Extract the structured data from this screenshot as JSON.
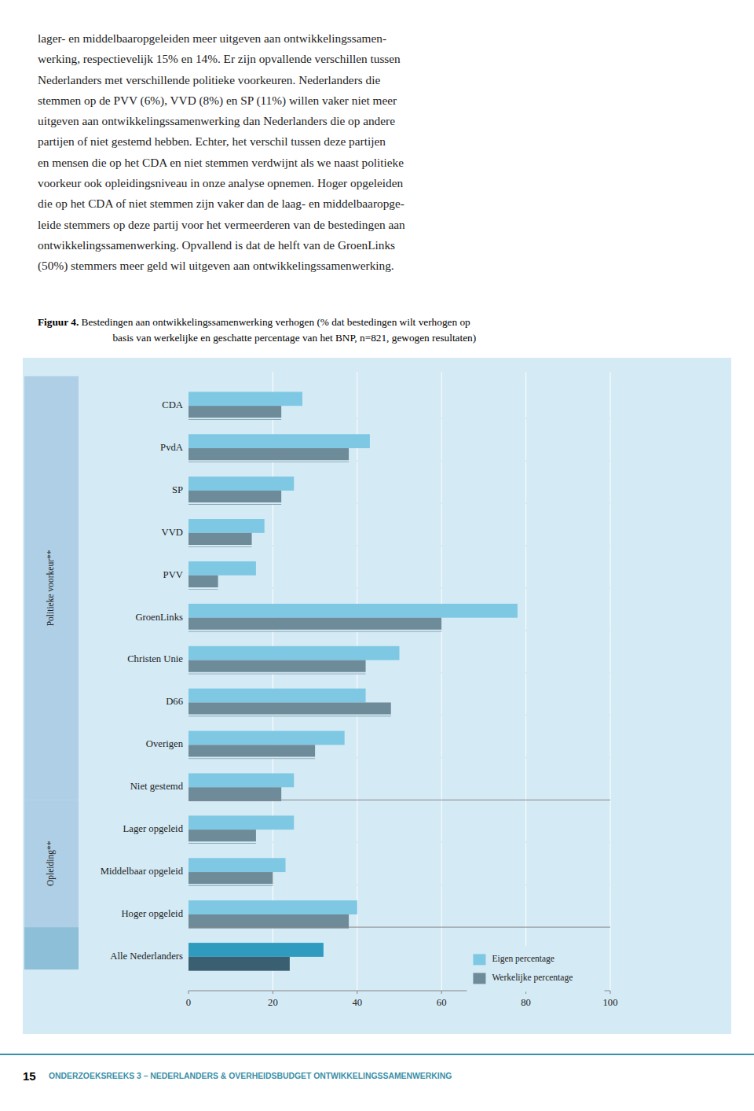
{
  "page": {
    "body_text": "lager- en middelbaaropgeleiden meer uitgeven aan ontwikkelingssamen-\nwerking, respectievelijk 15% en 14%. Er zijn opvallende verschillen tussen\nNederlanders met verschillende politieke voorkeuren. Nederlanders die\nstemmen op de PVV (6%), VVD (8%) en SP (11%) willen vaker niet meer\nuitgeven aan ontwikkelingssamenwerking dan Nederlanders die op andere\npartijen of niet gestemd hebben. Echter, het verschil tussen deze partijen\nen mensen die op het CDA en niet stemmen verdwijnt als we naast politieke\nvoorkeur ook opleidingsniveau in onze analyse opnemen. Hoger opgeleiden\ndie op het CDA of niet stemmen zijn vaker dan de laag- en middelbaaropge-\nleide stemmers op deze partij voor het vermeerderen van de bestedingen aan\nontwikkelingssamenwerking. Opvallend is dat de helft van de GroenLinks\n(50%) stemmers meer geld wil uitgeven aan ontwikkelingssamenwerking.",
    "figure_label": "Figuur 4.",
    "figure_text": " Bestedingen aan ontwikkelingssamenwerking verhogen (% dat bestedingen wilt verhogen op\n             basis van werkelijke en geschatte percentage van het BNP, n=821, gewogen resultaten)",
    "footer_number": "15",
    "footer_text": "ONDERZOEKSREEKS 3 – NEDERLANDERS & OVERHEIDSBUDGET ONTWIKKELINGSSAMENWERKING"
  },
  "chart_data": {
    "type": "bar",
    "orientation": "horizontal",
    "categories": [
      "CDA",
      "PvdA",
      "SP",
      "VVD",
      "PVV",
      "GroenLinks",
      "Christen Unie",
      "D66",
      "Overigen",
      "Niet gestemd",
      "Lager opgeleid",
      "Middelbaar opgeleid",
      "Hoger opgeleid",
      "Alle Nederlanders"
    ],
    "series": [
      {
        "name": "Eigen percentage",
        "color": "#7EC8E3",
        "colors": [
          "#7EC8E3",
          "#7EC8E3",
          "#7EC8E3",
          "#7EC8E3",
          "#7EC8E3",
          "#7EC8E3",
          "#7EC8E3",
          "#7EC8E3",
          "#7EC8E3",
          "#7EC8E3",
          "#7EC8E3",
          "#7EC8E3",
          "#7EC8E3",
          "#2E9BBF"
        ],
        "values": [
          27,
          43,
          25,
          18,
          16,
          78,
          50,
          42,
          37,
          25,
          25,
          23,
          40,
          32
        ]
      },
      {
        "name": "Werkelijke percentage",
        "color": "#6E8B9A",
        "colors": [
          "#6E8B9A",
          "#6E8B9A",
          "#6E8B9A",
          "#6E8B9A",
          "#6E8B9A",
          "#6E8B9A",
          "#6E8B9A",
          "#6E8B9A",
          "#6E8B9A",
          "#6E8B9A",
          "#6E8B9A",
          "#6E8B9A",
          "#6E8B9A",
          "#3A5F70"
        ],
        "values": [
          22,
          38,
          22,
          15,
          7,
          60,
          42,
          48,
          30,
          22,
          16,
          20,
          38,
          24
        ]
      }
    ],
    "annotations": [
      {
        "text": "Politieke voorkeur**",
        "from": "CDA",
        "to": "Niet gestemd"
      },
      {
        "text": "Opleiding**",
        "from": "Lager opgeleid",
        "to": "Hoger opgeleid"
      }
    ],
    "xlim": [
      0,
      100
    ],
    "xticks": [
      0,
      20,
      40,
      60,
      80,
      100
    ],
    "grid": true,
    "legend": "lower right"
  }
}
